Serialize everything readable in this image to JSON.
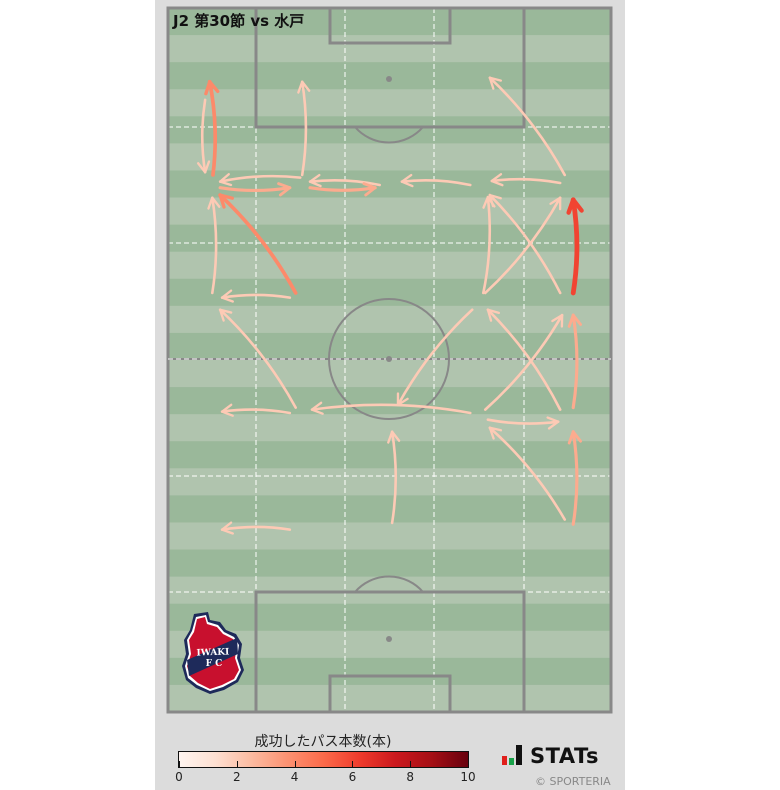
{
  "title": "J2 第30節 vs 水戸",
  "legend": {
    "title": "成功したパス本数(本)",
    "ticks": [
      "0",
      "2",
      "4",
      "6",
      "8",
      "10"
    ]
  },
  "brand": {
    "name": "STATs",
    "copyright": "© SPORTERIA"
  },
  "logo": {
    "text_top": "IWAKI",
    "text_bottom": "FC",
    "colors": {
      "red": "#c8102e",
      "navy": "#1e2a5a"
    }
  },
  "colors": {
    "pitch_dark": "#9ab89a",
    "pitch_light": "#b0c4ae",
    "lines": "#888888",
    "colormap": "Reds"
  },
  "chart_data": {
    "type": "pass-flow-map",
    "title": "J2 第30節 vs 水戸",
    "pitch_units": "meters",
    "pitch_size": [
      68,
      105
    ],
    "colorbar": {
      "label": "成功したパス本数(本)",
      "range": [
        0,
        10
      ],
      "ticks": [
        0,
        2,
        4,
        6,
        8,
        10
      ]
    },
    "passes": [
      {
        "from": [
          6.9,
          24.9
        ],
        "to": [
          6.4,
          11.0
        ],
        "count": 4
      },
      {
        "from": [
          5.7,
          13.7
        ],
        "to": [
          5.7,
          24.5
        ],
        "count": 2
      },
      {
        "from": [
          20.6,
          24.9
        ],
        "to": [
          20.6,
          11.0
        ],
        "count": 2
      },
      {
        "from": [
          20.3,
          25.3
        ],
        "to": [
          8.0,
          25.9
        ],
        "count": 2
      },
      {
        "from": [
          8.0,
          26.8
        ],
        "to": [
          18.7,
          26.8
        ],
        "count": 3
      },
      {
        "from": [
          32.5,
          26.4
        ],
        "to": [
          21.8,
          25.9
        ],
        "count": 2
      },
      {
        "from": [
          21.8,
          26.8
        ],
        "to": [
          31.8,
          26.8
        ],
        "count": 3
      },
      {
        "from": [
          46.4,
          26.4
        ],
        "to": [
          35.9,
          25.9
        ],
        "count": 2
      },
      {
        "from": [
          60.2,
          26.1
        ],
        "to": [
          49.7,
          25.8
        ],
        "count": 2
      },
      {
        "from": [
          60.9,
          24.9
        ],
        "to": [
          49.4,
          10.4
        ],
        "count": 2
      },
      {
        "from": [
          62.2,
          42.5
        ],
        "to": [
          62.2,
          28.6
        ],
        "count": 6
      },
      {
        "from": [
          19.6,
          42.5
        ],
        "to": [
          8.0,
          27.9
        ],
        "count": 4
      },
      {
        "from": [
          6.8,
          42.5
        ],
        "to": [
          6.8,
          28.3
        ],
        "count": 2
      },
      {
        "from": [
          18.7,
          43.2
        ],
        "to": [
          8.3,
          43.2
        ],
        "count": 2
      },
      {
        "from": [
          48.4,
          42.5
        ],
        "to": [
          49.1,
          28.2
        ],
        "count": 2
      },
      {
        "from": [
          60.2,
          42.5
        ],
        "to": [
          49.4,
          27.9
        ],
        "count": 2
      },
      {
        "from": [
          48.7,
          42.5
        ],
        "to": [
          60.2,
          28.3
        ],
        "count": 2
      },
      {
        "from": [
          19.6,
          59.6
        ],
        "to": [
          8.0,
          45.0
        ],
        "count": 2
      },
      {
        "from": [
          18.7,
          60.4
        ],
        "to": [
          8.3,
          60.2
        ],
        "count": 2
      },
      {
        "from": [
          46.7,
          45.0
        ],
        "to": [
          35.3,
          59.2
        ],
        "count": 2
      },
      {
        "from": [
          46.4,
          60.4
        ],
        "to": [
          22.1,
          59.9
        ],
        "count": 2
      },
      {
        "from": [
          60.2,
          59.9
        ],
        "to": [
          49.1,
          45.0
        ],
        "count": 2
      },
      {
        "from": [
          48.7,
          59.9
        ],
        "to": [
          60.5,
          45.8
        ],
        "count": 2
      },
      {
        "from": [
          62.2,
          59.6
        ],
        "to": [
          62.2,
          45.8
        ],
        "count": 3
      },
      {
        "from": [
          49.1,
          61.4
        ],
        "to": [
          59.9,
          61.7
        ],
        "count": 2
      },
      {
        "from": [
          34.4,
          76.8
        ],
        "to": [
          34.4,
          63.2
        ],
        "count": 2
      },
      {
        "from": [
          60.9,
          76.3
        ],
        "to": [
          49.4,
          62.6
        ],
        "count": 2
      },
      {
        "from": [
          62.2,
          77.0
        ],
        "to": [
          62.2,
          63.2
        ],
        "count": 3
      },
      {
        "from": [
          18.7,
          77.8
        ],
        "to": [
          8.3,
          77.8
        ],
        "count": 2
      }
    ]
  }
}
